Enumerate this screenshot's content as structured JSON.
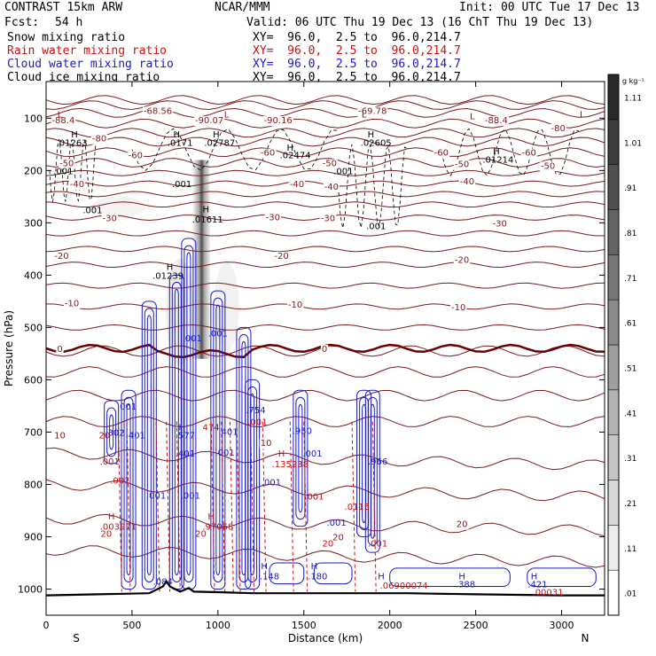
{
  "header": {
    "title": "CONTRAST 15km ARW",
    "org": "NCAR/MMM",
    "init": "Init: 00 UTC Tue 17 Dec 13",
    "fcst_label": "Fcst:",
    "fcst_value": "54 h",
    "valid": "Valid: 06 UTC Thu 19 Dec 13 (16 ChT Thu 19 Dec 13)"
  },
  "fields": [
    {
      "name": "Snow mixing ratio",
      "xy": "XY=  96.0,  2.5 to  96.0,214.7",
      "color": "#000000"
    },
    {
      "name": "Rain water mixing ratio",
      "xy": "XY=  96.0,  2.5 to  96.0,214.7",
      "color": "#cc1111"
    },
    {
      "name": "Cloud water mixing ratio",
      "xy": "XY=  96.0,  2.5 to  96.0,214.7",
      "color": "#1a1acc"
    },
    {
      "name": "Cloud ice mixing ratio",
      "xy": "XY=  96.0,  2.5 to  96.0,214.7",
      "color": "#000000"
    }
  ],
  "chart_data": {
    "type": "heatmap",
    "xlabel": "Distance (km)",
    "ylabel": "Pressure (hPa)",
    "xlim": [
      0,
      3250
    ],
    "ylim": [
      1050,
      30
    ],
    "x_ticks": [
      0,
      500,
      1000,
      1500,
      2000,
      2500,
      3000
    ],
    "y_ticks": [
      100,
      200,
      300,
      400,
      500,
      600,
      700,
      800,
      900,
      1000
    ],
    "x_end_labels": {
      "left": "S",
      "right": "N"
    },
    "colorbar": {
      "unit": "g kg⁻¹",
      "ticks": [
        ".01",
        ".11",
        ".21",
        ".31",
        ".41",
        ".51",
        ".61",
        ".71",
        ".81",
        ".91",
        "1.01",
        "1.11"
      ],
      "low_color": "#ffffff",
      "high_color": "#2a2a2a"
    },
    "temperature_contours": {
      "color": "#7a1c1c",
      "zero_color": "#6b0000",
      "labels": [
        {
          "text": "-68.56",
          "x": 650,
          "p": 85
        },
        {
          "text": "-69.78",
          "x": 1900,
          "p": 85
        },
        {
          "text": "-88.4",
          "x": 100,
          "p": 103
        },
        {
          "text": "-90.07",
          "x": 950,
          "p": 103
        },
        {
          "text": "-90.16",
          "x": 1350,
          "p": 103
        },
        {
          "text": "-88.4",
          "x": 2620,
          "p": 103
        },
        {
          "text": "-80",
          "x": 310,
          "p": 138
        },
        {
          "text": "-80",
          "x": 2980,
          "p": 118
        },
        {
          "text": "-60",
          "x": 520,
          "p": 170
        },
        {
          "text": "-60",
          "x": 1290,
          "p": 165
        },
        {
          "text": "-60",
          "x": 2300,
          "p": 165
        },
        {
          "text": "-60",
          "x": 2810,
          "p": 165
        },
        {
          "text": "-50",
          "x": 120,
          "p": 185
        },
        {
          "text": "-50",
          "x": 1650,
          "p": 185
        },
        {
          "text": "-50",
          "x": 2420,
          "p": 187
        },
        {
          "text": "-50",
          "x": 2920,
          "p": 190
        },
        {
          "text": "-40",
          "x": 180,
          "p": 225
        },
        {
          "text": "-40",
          "x": 1460,
          "p": 225
        },
        {
          "text": "-40",
          "x": 2450,
          "p": 220
        },
        {
          "text": "-40",
          "x": 1660,
          "p": 230
        },
        {
          "text": "-30",
          "x": 370,
          "p": 290
        },
        {
          "text": "-30",
          "x": 1320,
          "p": 288
        },
        {
          "text": "-30",
          "x": 1640,
          "p": 290
        },
        {
          "text": "-30",
          "x": 2640,
          "p": 300
        },
        {
          "text": "-20",
          "x": 90,
          "p": 362
        },
        {
          "text": "-20",
          "x": 1370,
          "p": 362
        },
        {
          "text": "-20",
          "x": 2420,
          "p": 370
        },
        {
          "text": "-10",
          "x": 150,
          "p": 453
        },
        {
          "text": "-10",
          "x": 1450,
          "p": 455
        },
        {
          "text": "-10",
          "x": 2400,
          "p": 460
        },
        {
          "text": "0",
          "x": 80,
          "p": 540
        },
        {
          "text": "0",
          "x": 1620,
          "p": 540
        },
        {
          "text": "10",
          "x": 80,
          "p": 705
        },
        {
          "text": "10",
          "x": 1280,
          "p": 720
        },
        {
          "text": "20",
          "x": 1700,
          "p": 900
        },
        {
          "text": "20",
          "x": 2420,
          "p": 875
        }
      ]
    },
    "extrema_labels": [
      {
        "text": "L",
        "x": 80,
        "p": 92,
        "color": "#7a1c1c"
      },
      {
        "text": "L",
        "x": 1050,
        "p": 92,
        "color": "#7a1c1c"
      },
      {
        "text": "L",
        "x": 1850,
        "p": 92,
        "color": "#7a1c1c"
      },
      {
        "text": "L",
        "x": 2480,
        "p": 95,
        "color": "#7a1c1c"
      },
      {
        "text": "L",
        "x": 3120,
        "p": 92,
        "color": "#7a1c1c"
      },
      {
        "text": "H",
        "x": 165,
        "p": 130,
        "color": "#000000"
      },
      {
        "text": ".01263",
        "x": 150,
        "p": 146,
        "color": "#000000"
      },
      {
        "text": "H",
        "x": 760,
        "p": 130,
        "color": "#000000"
      },
      {
        "text": ".0171",
        "x": 780,
        "p": 146,
        "color": "#000000"
      },
      {
        "text": "H",
        "x": 990,
        "p": 130,
        "color": "#000000"
      },
      {
        "text": ".02787",
        "x": 1010,
        "p": 146,
        "color": "#000000"
      },
      {
        "text": "H",
        "x": 1420,
        "p": 155,
        "color": "#000000"
      },
      {
        "text": ".02474",
        "x": 1450,
        "p": 170,
        "color": "#000000"
      },
      {
        "text": "H",
        "x": 1890,
        "p": 130,
        "color": "#000000"
      },
      {
        "text": ".02605",
        "x": 1920,
        "p": 146,
        "color": "#000000"
      },
      {
        "text": "H",
        "x": 2620,
        "p": 162,
        "color": "#000000"
      },
      {
        "text": ".01214",
        "x": 2630,
        "p": 178,
        "color": "#000000"
      },
      {
        "text": ".001",
        "x": 100,
        "p": 200,
        "color": "#000000"
      },
      {
        "text": ".001",
        "x": 790,
        "p": 225,
        "color": "#000000"
      },
      {
        "text": ".001",
        "x": 1730,
        "p": 200,
        "color": "#000000"
      },
      {
        "text": ".001",
        "x": 1920,
        "p": 305,
        "color": "#000000"
      },
      {
        "text": ".001",
        "x": 270,
        "p": 275,
        "color": "#000000"
      },
      {
        "text": "H",
        "x": 930,
        "p": 273,
        "color": "#000000"
      },
      {
        "text": ".01611",
        "x": 940,
        "p": 293,
        "color": "#000000"
      },
      {
        "text": "H",
        "x": 720,
        "p": 383,
        "color": "#000000"
      },
      {
        "text": ".01239",
        "x": 710,
        "p": 400,
        "color": "#000000"
      },
      {
        "text": ".001",
        "x": 850,
        "p": 520,
        "color": "#1a1acc"
      },
      {
        "text": ".001",
        "x": 1000,
        "p": 510,
        "color": "#1a1acc"
      },
      {
        "text": ".001",
        "x": 470,
        "p": 650,
        "color": "#1a1acc"
      },
      {
        "text": ".302",
        "x": 400,
        "p": 700,
        "color": "#1a1acc"
      },
      {
        "text": ".401",
        "x": 520,
        "p": 705,
        "color": "#1a1acc"
      },
      {
        "text": "H",
        "x": 790,
        "p": 690,
        "color": "#1a1acc"
      },
      {
        "text": ".577",
        "x": 810,
        "p": 705,
        "color": "#1a1acc"
      },
      {
        "text": ".401",
        "x": 810,
        "p": 740,
        "color": "#1a1acc"
      },
      {
        "text": ".401",
        "x": 1060,
        "p": 698,
        "color": "#1a1acc"
      },
      {
        "text": ".001",
        "x": 1040,
        "p": 738,
        "color": "#1a1acc"
      },
      {
        "text": ".754",
        "x": 1220,
        "p": 657,
        "color": "#1a1acc"
      },
      {
        "text": ".950",
        "x": 1490,
        "p": 697,
        "color": "#1a1acc"
      },
      {
        "text": ".001",
        "x": 1550,
        "p": 740,
        "color": "#1a1acc"
      },
      {
        "text": ".001",
        "x": 1310,
        "p": 795,
        "color": "#1a1acc"
      },
      {
        "text": ".966",
        "x": 1930,
        "p": 755,
        "color": "#1a1acc"
      },
      {
        "text": ".001",
        "x": 1690,
        "p": 872,
        "color": "#1a1acc"
      },
      {
        "text": ".001",
        "x": 640,
        "p": 820,
        "color": "#1a1acc"
      },
      {
        "text": ".001",
        "x": 840,
        "p": 820,
        "color": "#1a1acc"
      },
      {
        "text": "H",
        "x": 1270,
        "p": 955,
        "color": "#1a1acc"
      },
      {
        "text": ".148",
        "x": 1300,
        "p": 975,
        "color": "#1a1acc"
      },
      {
        "text": "H",
        "x": 1560,
        "p": 955,
        "color": "#1a1acc"
      },
      {
        "text": ".180",
        "x": 1580,
        "p": 975,
        "color": "#1a1acc"
      },
      {
        "text": "H",
        "x": 1950,
        "p": 975,
        "color": "#1a1acc"
      },
      {
        "text": "H",
        "x": 2420,
        "p": 975,
        "color": "#1a1acc"
      },
      {
        "text": ".388",
        "x": 2440,
        "p": 990,
        "color": "#1a1acc"
      },
      {
        "text": "H",
        "x": 2840,
        "p": 975,
        "color": "#1a1acc"
      },
      {
        "text": ".421",
        "x": 2860,
        "p": 990,
        "color": "#1a1acc"
      },
      {
        "text": ".084",
        "x": 680,
        "p": 985,
        "color": "#1a1acc"
      },
      {
        "text": ".001",
        "x": 370,
        "p": 755,
        "color": "#cc1111"
      },
      {
        "text": ".001",
        "x": 430,
        "p": 792,
        "color": "#cc1111"
      },
      {
        "text": "H",
        "x": 380,
        "p": 860,
        "color": "#cc1111"
      },
      {
        "text": ".003971",
        "x": 420,
        "p": 880,
        "color": "#cc1111"
      },
      {
        "text": "H",
        "x": 960,
        "p": 860,
        "color": "#cc1111"
      },
      {
        "text": ".97068",
        "x": 1000,
        "p": 880,
        "color": "#cc1111"
      },
      {
        "text": "H",
        "x": 1370,
        "p": 740,
        "color": "#cc1111"
      },
      {
        "text": ".135238",
        "x": 1420,
        "p": 760,
        "color": "#cc1111"
      },
      {
        "text": ".001",
        "x": 1560,
        "p": 822,
        "color": "#cc1111"
      },
      {
        "text": ".0115",
        "x": 1810,
        "p": 842,
        "color": "#cc1111"
      },
      {
        "text": ".001",
        "x": 1930,
        "p": 912,
        "color": "#cc1111"
      },
      {
        "text": ".069",
        "x": 2000,
        "p": 992,
        "color": "#cc1111"
      },
      {
        "text": "00074",
        "x": 2140,
        "p": 992,
        "color": "#cc1111"
      },
      {
        "text": ".00031",
        "x": 2920,
        "p": 1005,
        "color": "#cc1111"
      },
      {
        "text": "20",
        "x": 350,
        "p": 893,
        "color": "#cc1111"
      },
      {
        "text": "20",
        "x": 900,
        "p": 893,
        "color": "#cc1111"
      },
      {
        "text": "20",
        "x": 1640,
        "p": 912,
        "color": "#cc1111"
      },
      {
        "text": "20",
        "x": 340,
        "p": 705,
        "color": "#cc1111"
      },
      {
        "text": ".001",
        "x": 1230,
        "p": 680,
        "color": "#cc1111"
      },
      {
        "text": "474",
        "x": 960,
        "p": 690,
        "color": "#cc1111"
      }
    ],
    "terrain": [
      [
        0,
        1012
      ],
      [
        300,
        1010
      ],
      [
        600,
        1008
      ],
      [
        680,
        995
      ],
      [
        700,
        985
      ],
      [
        720,
        995
      ],
      [
        780,
        1005
      ],
      [
        830,
        998
      ],
      [
        860,
        1005
      ],
      [
        1000,
        1006
      ],
      [
        1200,
        1008
      ],
      [
        1500,
        1008
      ],
      [
        1800,
        1008
      ],
      [
        2100,
        1008
      ],
      [
        2500,
        1010
      ],
      [
        3000,
        1012
      ],
      [
        3250,
        1012
      ]
    ]
  }
}
